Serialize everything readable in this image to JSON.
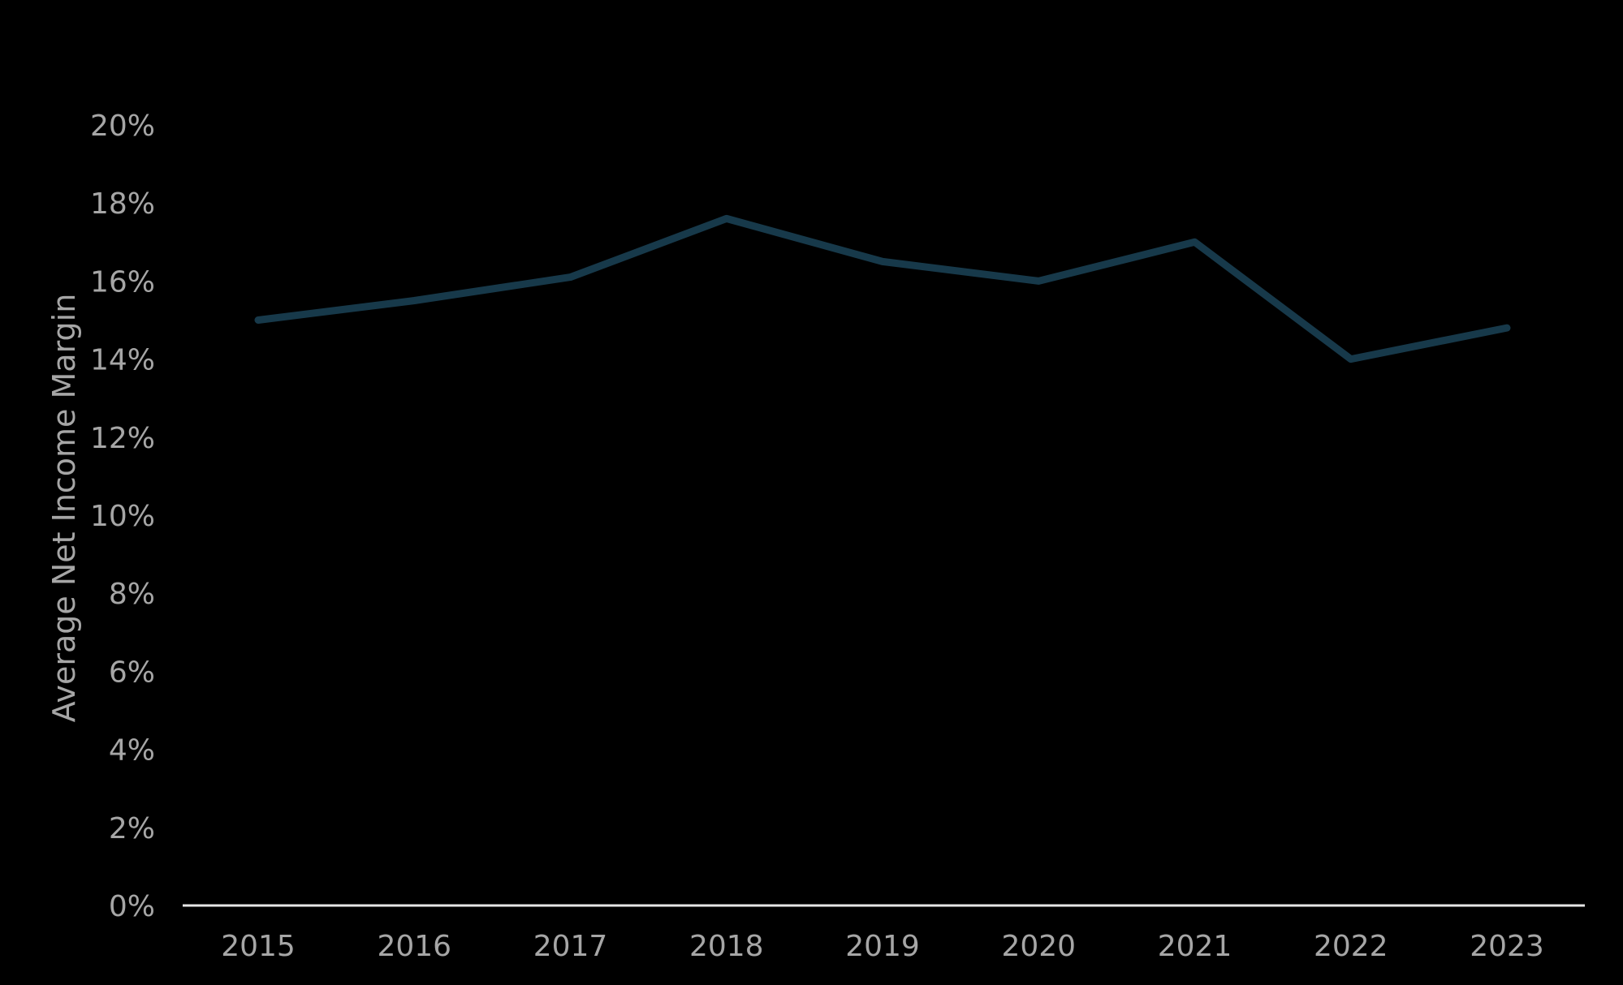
{
  "chart_data": {
    "type": "line",
    "title": "",
    "xlabel": "",
    "ylabel": "Average Net Income Margin",
    "x": [
      "2015",
      "2016",
      "2017",
      "2018",
      "2019",
      "2020",
      "2021",
      "2022",
      "2023"
    ],
    "series": [
      {
        "values": [
          0.15,
          0.155,
          0.161,
          0.176,
          0.165,
          0.16,
          0.17,
          0.14,
          0.148
        ]
      }
    ],
    "ylim": [
      0,
      0.2
    ],
    "yticks": [
      0,
      0.02,
      0.04,
      0.06,
      0.08,
      0.1,
      0.12,
      0.14,
      0.16,
      0.18,
      0.2
    ],
    "ytick_labels": [
      "0%",
      "2%",
      "4%",
      "6%",
      "8%",
      "10%",
      "12%",
      "14%",
      "16%",
      "18%",
      "20%"
    ],
    "grid": false,
    "legend": "none",
    "colors": {
      "background": "#000000",
      "line": "#17394a",
      "axis": "#e6e6e6",
      "text": "#a6a6a6"
    }
  }
}
